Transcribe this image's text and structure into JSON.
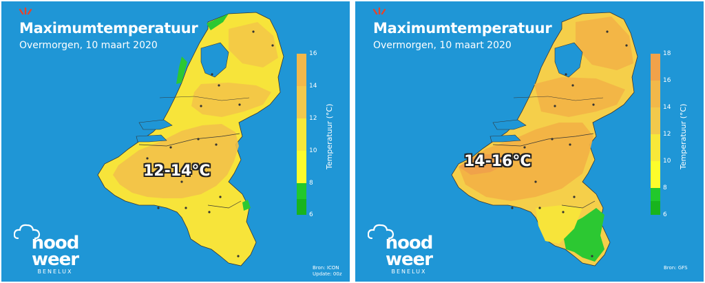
{
  "panels": [
    {
      "title": "Maximumtemperatuur",
      "subtitle": "Overmorgen, 10 maart 2020",
      "temp_label": "12-14°C",
      "legend_title": "Temperatuur (°C)",
      "legend_ticks": [
        "16",
        "14",
        "12",
        "10",
        "8",
        "6"
      ],
      "legend_colors": [
        "#f2b84a",
        "#f2c94c",
        "#f7e83a",
        "#fcfc2c",
        "#22c82c",
        "#18b41e"
      ],
      "source_line1": "Bron: ICON",
      "source_line2": "Update: 00z"
    },
    {
      "title": "Maximumtemperatuur",
      "subtitle": "Overmorgen, 10 maart 2020",
      "temp_label": "14-16°C",
      "legend_title": "Temperatuur (°C)",
      "legend_ticks": [
        "18",
        "16",
        "14",
        "12",
        "10",
        "8",
        "6"
      ],
      "legend_colors": [
        "#f0a24a",
        "#f2b84a",
        "#f2c94c",
        "#f7e83a",
        "#fcfc2c",
        "#22c82c",
        "#18b41e"
      ],
      "source_line1": "Bron: GFS",
      "source_line2": ""
    }
  ],
  "logo": {
    "word1": "nood",
    "word2": "weer",
    "word3": "BENELUX"
  },
  "colors": {
    "sea": "#1f96d6",
    "land_warm": "#f5c84a",
    "land_yellow": "#f7e43a",
    "land_orange": "#f2b245",
    "green": "#2cc832"
  }
}
